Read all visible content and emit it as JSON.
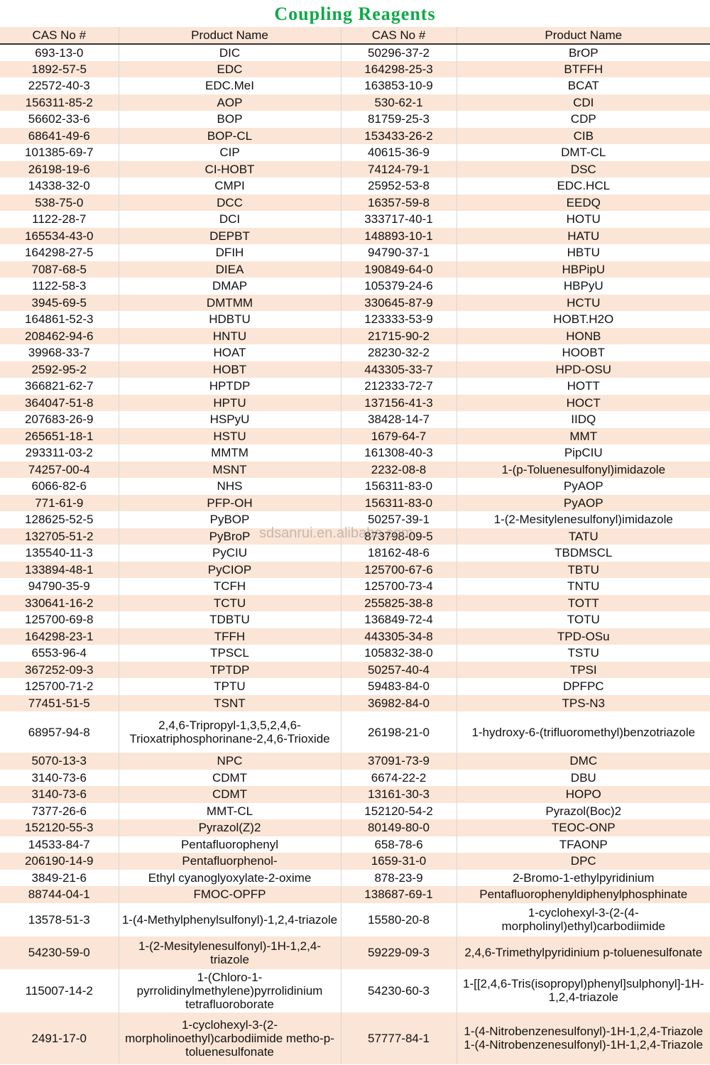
{
  "title": "Coupling Reagents",
  "watermark": "sdsanrui.en.alibaba.com",
  "table": {
    "header": [
      "CAS No #",
      "Product Name",
      "CAS No #",
      "Product Name"
    ],
    "rows": [
      [
        "693-13-0",
        "DIC",
        "50296-37-2",
        "BrOP"
      ],
      [
        "1892-57-5",
        "EDC",
        "164298-25-3",
        "BTFFH"
      ],
      [
        "22572-40-3",
        "EDC.MeI",
        "163853-10-9",
        "BCAT"
      ],
      [
        "156311-85-2",
        "AOP",
        "530-62-1",
        "CDI"
      ],
      [
        "56602-33-6",
        "BOP",
        "81759-25-3",
        "CDP"
      ],
      [
        "68641-49-6",
        "BOP-CL",
        "153433-26-2",
        "CIB"
      ],
      [
        "101385-69-7",
        "CIP",
        "40615-36-9",
        "DMT-CL"
      ],
      [
        "26198-19-6",
        "CI-HOBT",
        "74124-79-1",
        "DSC"
      ],
      [
        "14338-32-0",
        "CMPI",
        "25952-53-8",
        "EDC.HCL"
      ],
      [
        "538-75-0",
        "DCC",
        "16357-59-8",
        "EEDQ"
      ],
      [
        "1122-28-7",
        "DCI",
        "333717-40-1",
        "HOTU"
      ],
      [
        "165534-43-0",
        "DEPBT",
        "148893-10-1",
        "HATU"
      ],
      [
        "164298-27-5",
        "DFIH",
        "94790-37-1",
        "HBTU"
      ],
      [
        "7087-68-5",
        "DIEA",
        "190849-64-0",
        "HBPipU"
      ],
      [
        "1122-58-3",
        "DMAP",
        "105379-24-6",
        "HBPyU"
      ],
      [
        "3945-69-5",
        "DMTMM",
        "330645-87-9",
        "HCTU"
      ],
      [
        "164861-52-3",
        "HDBTU",
        "123333-53-9",
        "HOBT.H2O"
      ],
      [
        "208462-94-6",
        "HNTU",
        "21715-90-2",
        "HONB"
      ],
      [
        "39968-33-7",
        "HOAT",
        "28230-32-2",
        "HOOBT"
      ],
      [
        "2592-95-2",
        "HOBT",
        "443305-33-7",
        "HPD-OSU"
      ],
      [
        "366821-62-7",
        "HPTDP",
        "212333-72-7",
        "HOTT"
      ],
      [
        "364047-51-8",
        "HPTU",
        "137156-41-3",
        "HOCT"
      ],
      [
        "207683-26-9",
        "HSPyU",
        "38428-14-7",
        "IIDQ"
      ],
      [
        "265651-18-1",
        "HSTU",
        "1679-64-7",
        "MMT"
      ],
      [
        "293311-03-2",
        "MMTM",
        "161308-40-3",
        "PipCIU"
      ],
      [
        "74257-00-4",
        "MSNT",
        "2232-08-8",
        "1-(p-Toluenesulfonyl)imidazole"
      ],
      [
        "6066-82-6",
        "NHS",
        "156311-83-0",
        "PyAOP"
      ],
      [
        "771-61-9",
        "PFP-OH",
        "156311-83-0",
        "PyAOP"
      ],
      [
        "128625-52-5",
        "PyBOP",
        "50257-39-1",
        "1-(2-Mesitylenesulfonyl)imidazole"
      ],
      [
        "132705-51-2",
        "PyBroP",
        "873798-09-5",
        "TATU"
      ],
      [
        "135540-11-3",
        "PyCIU",
        "18162-48-6",
        "TBDMSCL"
      ],
      [
        "133894-48-1",
        "PyCIOP",
        "125700-67-6",
        "TBTU"
      ],
      [
        "94790-35-9",
        "TCFH",
        "125700-73-4",
        "TNTU"
      ],
      [
        "330641-16-2",
        "TCTU",
        "255825-38-8",
        "TOTT"
      ],
      [
        "125700-69-8",
        "TDBTU",
        "136849-72-4",
        "TOTU"
      ],
      [
        "164298-23-1",
        "TFFH",
        "443305-34-8",
        "TPD-OSu"
      ],
      [
        "6553-96-4",
        "TPSCL",
        "105832-38-0",
        "TSTU"
      ],
      [
        "367252-09-3",
        "TPTDP",
        "50257-40-4",
        "TPSI"
      ],
      [
        "125700-71-2",
        "TPTU",
        "59483-84-0",
        "DPFPC"
      ],
      [
        "77451-51-5",
        "TSNT",
        "36982-84-0",
        "TPS-N3"
      ],
      [
        "68957-94-8",
        "2,4,6-Tripropyl-1,3,5,2,4,6-Trioxatriphosphorinane-2,4,6-Trioxide",
        "26198-21-0",
        "1-hydroxy-6-(trifluoromethyl)benzotriazole"
      ],
      [
        "5070-13-3",
        "NPC",
        "37091-73-9",
        "DMC"
      ],
      [
        "3140-73-6",
        "CDMT",
        "6674-22-2",
        "DBU"
      ],
      [
        "3140-73-6",
        "CDMT",
        "13161-30-3",
        "HOPO"
      ],
      [
        "7377-26-6",
        "MMT-CL",
        "152120-54-2",
        "Pyrazol(Boc)2"
      ],
      [
        "152120-55-3",
        "Pyrazol(Z)2",
        "80149-80-0",
        "TEOC-ONP"
      ],
      [
        "14533-84-7",
        "Pentafluorophenyl",
        "658-78-6",
        "TFAONP"
      ],
      [
        "206190-14-9",
        "Pentafluorphenol-",
        "1659-31-0",
        "DPC"
      ],
      [
        "3849-21-6",
        "Ethyl cyanoglyoxylate-2-oxime",
        "878-23-9",
        "2-Bromo-1-ethylpyridinium"
      ],
      [
        "88744-04-1",
        "FMOC-OPFP",
        "138687-69-1",
        "Pentafluorophenyldiphenylphosphinate"
      ],
      [
        "13578-51-3",
        "1-(4-Methylphenylsulfonyl)-1,2,4-triazole",
        "15580-20-8",
        "1-cyclohexyl-3-(2-(4-morpholinyl)ethyl)carbodiimide"
      ],
      [
        "54230-59-0",
        "1-(2-Mesitylenesulfonyl)-1H-1,2,4-triazole",
        "59229-09-3",
        "2,4,6-Trimethylpyridinium p-toluenesulfonate"
      ],
      [
        "115007-14-2",
        "1-(Chloro-1-pyrrolidinylmethylene)pyrrolidinium tetrafluoroborate",
        "54230-60-3",
        "1-[[2,4,6-Tris(isopropyl)phenyl]sulphonyl]-1H-1,2,4-triazole"
      ],
      [
        "2491-17-0",
        "1-cyclohexyl-3-(2-morpholinoethyl)carbodiimide metho-p-toluenesulfonate",
        "57777-84-1",
        "1-(4-Nitrobenzenesulfonyl)-1H-1,2,4-Triazole 1-(4-Nitrobenzenesulfonyl)-1H-1,2,4-Triazole"
      ]
    ]
  }
}
